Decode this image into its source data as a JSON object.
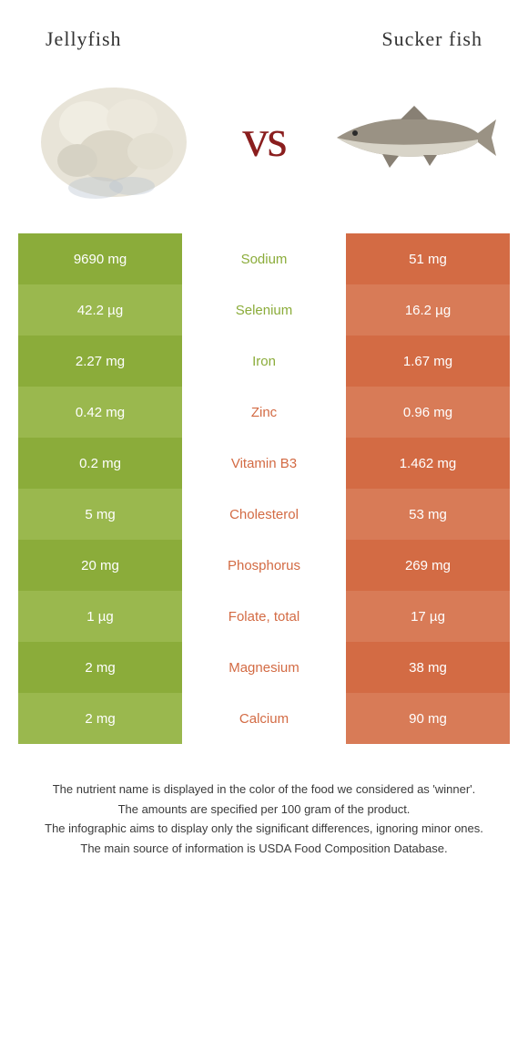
{
  "food_left": {
    "name": "Jellyfish",
    "color": "#8bac3a",
    "color_alt": "#9ab84e"
  },
  "food_right": {
    "name": "Sucker fish",
    "color": "#d36b44",
    "color_alt": "#d87b57"
  },
  "vs": "vs",
  "rows": [
    {
      "left": "9690 mg",
      "nutrient": "Sodium",
      "right": "51 mg",
      "winner": "left"
    },
    {
      "left": "42.2 µg",
      "nutrient": "Selenium",
      "right": "16.2 µg",
      "winner": "left"
    },
    {
      "left": "2.27 mg",
      "nutrient": "Iron",
      "right": "1.67 mg",
      "winner": "left"
    },
    {
      "left": "0.42 mg",
      "nutrient": "Zinc",
      "right": "0.96 mg",
      "winner": "right"
    },
    {
      "left": "0.2 mg",
      "nutrient": "Vitamin B3",
      "right": "1.462 mg",
      "winner": "right"
    },
    {
      "left": "5 mg",
      "nutrient": "Cholesterol",
      "right": "53 mg",
      "winner": "right"
    },
    {
      "left": "20 mg",
      "nutrient": "Phosphorus",
      "right": "269 mg",
      "winner": "right"
    },
    {
      "left": "1 µg",
      "nutrient": "Folate, total",
      "right": "17 µg",
      "winner": "right"
    },
    {
      "left": "2 mg",
      "nutrient": "Magnesium",
      "right": "38 mg",
      "winner": "right"
    },
    {
      "left": "2 mg",
      "nutrient": "Calcium",
      "right": "90 mg",
      "winner": "right"
    }
  ],
  "footnotes": [
    "The nutrient name is displayed in the color of the food we considered as 'winner'.",
    "The amounts are specified per 100 gram of the product.",
    "The infographic aims to display only the significant differences, ignoring minor ones.",
    "The main source of information is USDA Food Composition Database."
  ]
}
